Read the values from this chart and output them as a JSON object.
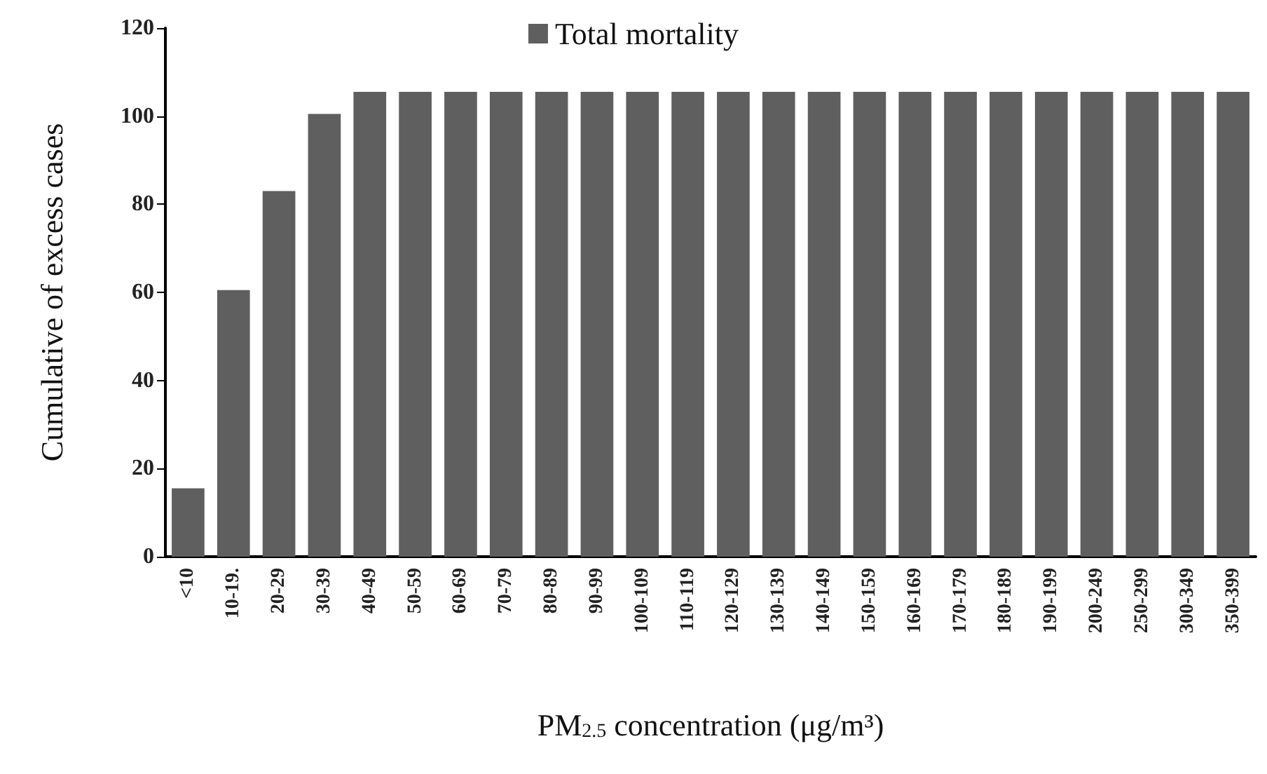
{
  "chart_data": {
    "type": "bar",
    "xlabel": "PM$_{2.5}$ concentration (μg/m³)",
    "ylabel": "Cumulative of excess cases",
    "categories": [
      "<10",
      "10-19.",
      "20-29",
      "30-39",
      "40-49",
      "50-59",
      "60-69",
      "70-79",
      "80-89",
      "90-99",
      "100-109",
      "110-119",
      "120-129",
      "130-139",
      "140-149",
      "150-159",
      "160-169",
      "170-179",
      "180-189",
      "190-199",
      "200-249",
      "250-299",
      "300-349",
      "350-399"
    ],
    "series": [
      {
        "name": "Total mortality",
        "color": "#5f5f5f",
        "values": [
          15.5,
          60.5,
          83,
          100.5,
          105.5,
          105.5,
          105.5,
          105.5,
          105.5,
          105.5,
          105.5,
          105.5,
          105.5,
          105.5,
          105.5,
          105.5,
          105.5,
          105.5,
          105.5,
          105.5,
          105.5,
          105.5,
          105.5,
          105.5
        ]
      }
    ],
    "ylim": [
      0,
      120
    ],
    "yticks": [
      0,
      20,
      40,
      60,
      80,
      100,
      120
    ],
    "grid": false,
    "legend": "top"
  }
}
